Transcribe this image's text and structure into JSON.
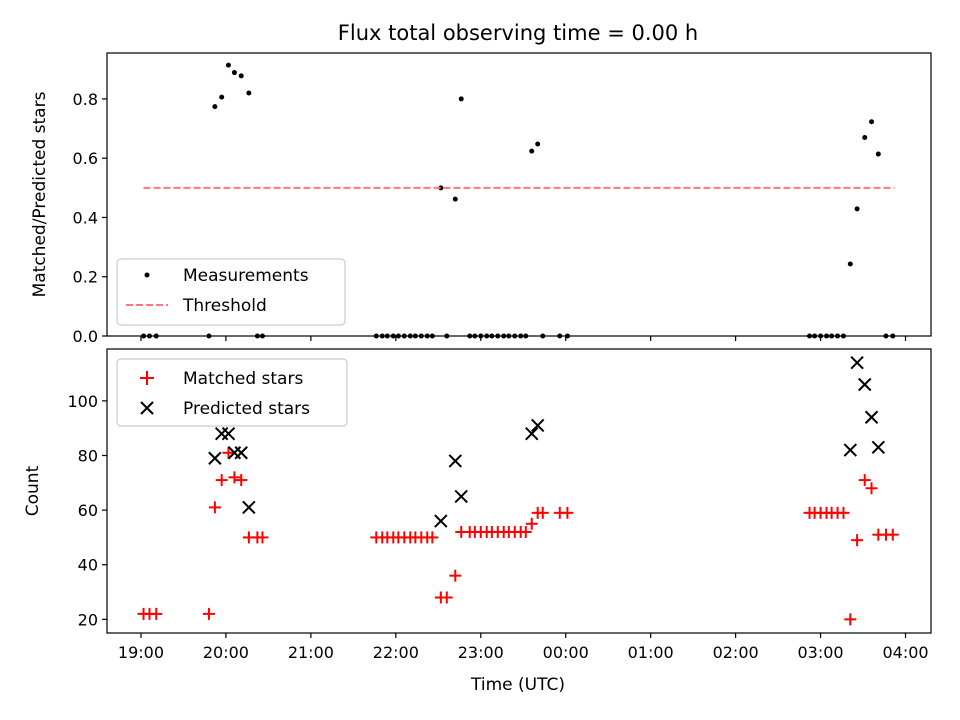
{
  "chart_data": [
    {
      "type": "scatter",
      "title": "Flux total observing time = 0.00 h",
      "xlabel": "",
      "ylabel": "Matched/Predicted stars",
      "xlim": [
        18.6,
        28.3
      ],
      "ylim": [
        0,
        0.955
      ],
      "yticks": [
        0.0,
        0.2,
        0.4,
        0.6,
        0.8
      ],
      "ytick_labels": [
        "0.0",
        "0.2",
        "0.4",
        "0.6",
        "0.8"
      ],
      "xticks": [
        19,
        20,
        21,
        22,
        23,
        24,
        25,
        26,
        27,
        28
      ],
      "legend_position": "lower-left",
      "series": [
        {
          "name": "Measurements",
          "color": "#000000",
          "marker": "dot",
          "x": [
            19.03,
            19.1,
            19.18,
            19.8,
            19.87,
            19.95,
            20.03,
            20.1,
            20.18,
            20.27,
            20.37,
            20.43,
            21.77,
            21.84,
            21.9,
            21.97,
            22.03,
            22.1,
            22.17,
            22.23,
            22.3,
            22.37,
            22.43,
            22.53,
            22.6,
            22.7,
            22.77,
            22.87,
            22.93,
            23.0,
            23.07,
            23.13,
            23.2,
            23.27,
            23.33,
            23.4,
            23.47,
            23.53,
            23.6,
            23.67,
            23.73,
            23.93,
            24.02,
            26.87,
            26.93,
            27.0,
            27.07,
            27.13,
            27.2,
            27.27,
            27.35,
            27.43,
            27.52,
            27.6,
            27.68,
            27.77,
            27.85
          ],
          "y": [
            0,
            0,
            0,
            0,
            0.774,
            0.806,
            0.914,
            0.889,
            0.878,
            0.82,
            0,
            0,
            0,
            0,
            0,
            0,
            0,
            0,
            0,
            0,
            0,
            0,
            0,
            0.5,
            0,
            0.462,
            0.8,
            0,
            0,
            0,
            0,
            0,
            0,
            0,
            0,
            0,
            0,
            0,
            0.624,
            0.648,
            0,
            0,
            0,
            0,
            0,
            0,
            0,
            0,
            0,
            0,
            0.243,
            0.429,
            0.67,
            0.723,
            0.614,
            0,
            0
          ]
        },
        {
          "name": "Threshold",
          "color": "#ff7777",
          "style": "dashed",
          "x": [
            19.03,
            27.87
          ],
          "y": [
            0.5,
            0.5
          ]
        }
      ]
    },
    {
      "type": "scatter",
      "title": "",
      "xlabel": "Time (UTC)",
      "ylabel": "Count",
      "xlim": [
        18.6,
        28.3
      ],
      "ylim": [
        15,
        119
      ],
      "yticks": [
        20,
        40,
        60,
        80,
        100
      ],
      "ytick_labels": [
        "20",
        "40",
        "60",
        "80",
        "100"
      ],
      "xticks": [
        19,
        20,
        21,
        22,
        23,
        24,
        25,
        26,
        27,
        28
      ],
      "xtick_labels": [
        "19:00",
        "20:00",
        "21:00",
        "22:00",
        "23:00",
        "00:00",
        "01:00",
        "02:00",
        "03:00",
        "04:00"
      ],
      "legend_position": "upper-left",
      "series": [
        {
          "name": "Matched stars",
          "color": "#ff0000",
          "marker": "plus",
          "x": [
            19.03,
            19.1,
            19.18,
            19.8,
            19.87,
            19.95,
            20.03,
            20.1,
            20.18,
            20.27,
            20.37,
            20.43,
            21.77,
            21.84,
            21.9,
            21.97,
            22.03,
            22.1,
            22.17,
            22.23,
            22.3,
            22.37,
            22.43,
            22.53,
            22.6,
            22.7,
            22.77,
            22.87,
            22.93,
            23.0,
            23.07,
            23.13,
            23.2,
            23.27,
            23.33,
            23.4,
            23.47,
            23.53,
            23.6,
            23.67,
            23.73,
            23.93,
            24.02,
            26.87,
            26.93,
            27.0,
            27.07,
            27.13,
            27.2,
            27.27,
            27.35,
            27.43,
            27.52,
            27.6,
            27.68,
            27.77,
            27.85
          ],
          "y": [
            22,
            22,
            22,
            22,
            61,
            71,
            81,
            72,
            71,
            50,
            50,
            50,
            50,
            50,
            50,
            50,
            50,
            50,
            50,
            50,
            50,
            50,
            50,
            28,
            28,
            36,
            52,
            52,
            52,
            52,
            52,
            52,
            52,
            52,
            52,
            52,
            52,
            52,
            55,
            59,
            59,
            59,
            59,
            59,
            59,
            59,
            59,
            59,
            59,
            59,
            20,
            49,
            71,
            68,
            51,
            51,
            51
          ]
        },
        {
          "name": "Predicted stars",
          "color": "#000000",
          "marker": "x",
          "x": [
            19.87,
            19.95,
            20.03,
            20.1,
            20.18,
            20.27,
            22.53,
            22.7,
            22.77,
            23.6,
            23.67,
            27.35,
            27.43,
            27.52,
            27.6,
            27.68
          ],
          "y": [
            79,
            88,
            88,
            81,
            81,
            61,
            56,
            78,
            65,
            88,
            91,
            82,
            114,
            106,
            94,
            83
          ]
        }
      ]
    }
  ]
}
